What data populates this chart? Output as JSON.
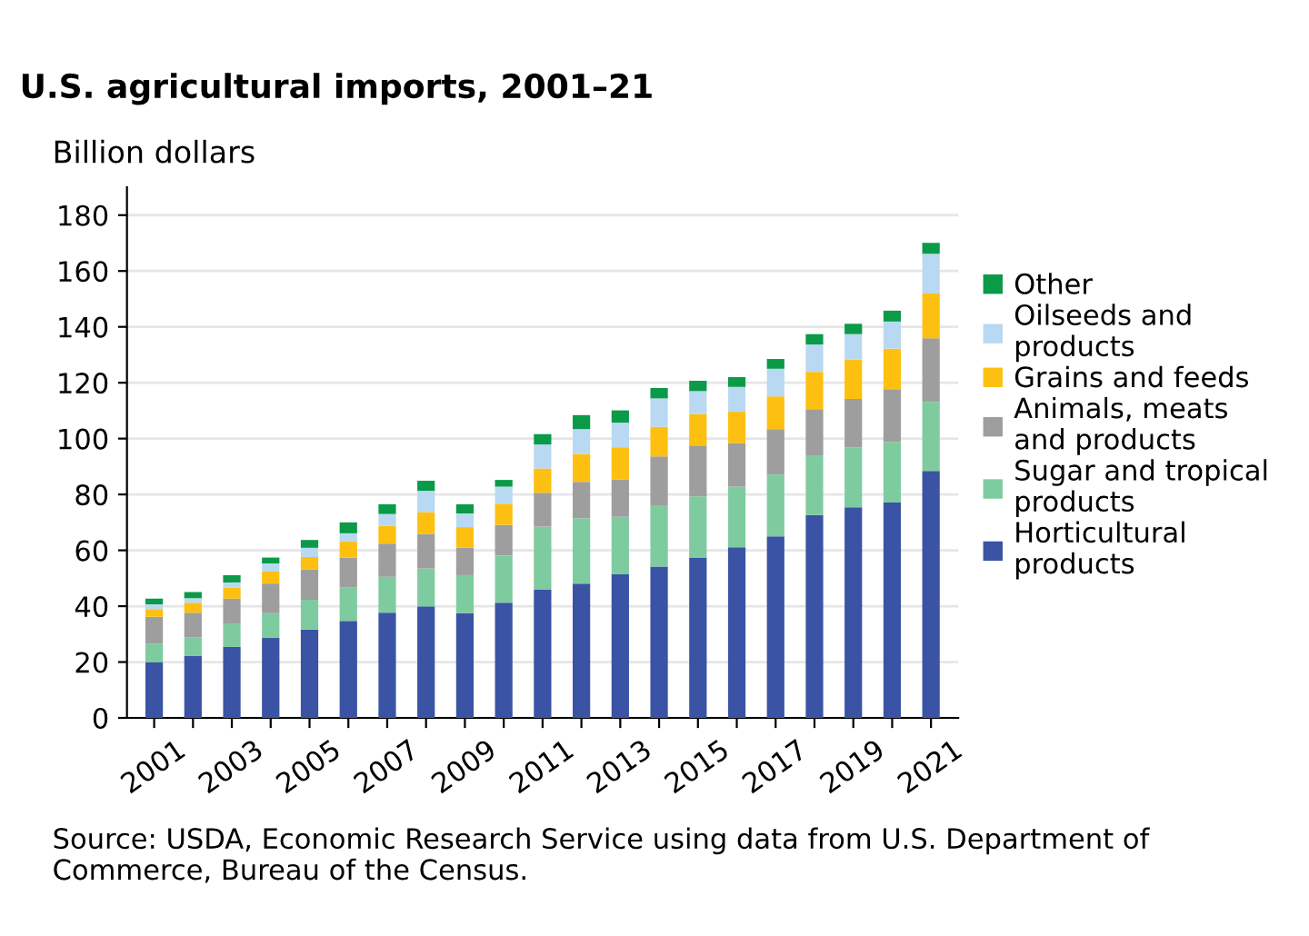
{
  "chart_data": {
    "type": "bar",
    "stacked": true,
    "title": "U.S. agricultural imports, 2001–21",
    "ylabel": "Billion dollars",
    "categories": [
      "2001",
      null,
      "2003",
      null,
      "2005",
      null,
      "2007",
      null,
      "2009",
      null,
      "2011",
      null,
      "2013",
      null,
      "2015",
      null,
      "2017",
      null,
      "2019",
      null,
      "2021"
    ],
    "series": [
      {
        "name": "Horticultural\nproducts",
        "color": "#3a53a4",
        "values": [
          20,
          22.1,
          25.4,
          28.6,
          31.6,
          34.7,
          37.7,
          39.9,
          37.5,
          41.2,
          45.9,
          48.1,
          51.4,
          54.2,
          57.4,
          61.1,
          65.0,
          72.6,
          75.4,
          77.1,
          88.4
        ]
      },
      {
        "name": "Sugar and tropical\nproducts",
        "color": "#7fcba0",
        "values": [
          6.6,
          6.7,
          8.4,
          8.9,
          10.7,
          12.1,
          12.8,
          13.6,
          13.6,
          16.9,
          22.6,
          23.4,
          20.6,
          21.9,
          21.9,
          21.7,
          22.1,
          21.2,
          21.5,
          21.7,
          24.7
        ]
      },
      {
        "name": "Animals, meats\nand products",
        "color": "#9e9e9e",
        "values": [
          9.6,
          8.9,
          8.9,
          10.6,
          10.8,
          10.6,
          11.9,
          12.4,
          9.8,
          11.0,
          12.1,
          13.0,
          13.4,
          17.5,
          18.2,
          15.6,
          16.3,
          16.7,
          17.3,
          18.9,
          22.8
        ]
      },
      {
        "name": "Grains and feeds",
        "color": "#fdc010",
        "values": [
          2.8,
          3.5,
          3.9,
          4.3,
          4.5,
          5.7,
          6.3,
          7.8,
          7.4,
          7.6,
          8.7,
          10.0,
          11.5,
          10.6,
          11.3,
          11.2,
          11.7,
          13.4,
          14.1,
          14.5,
          16.0
        ]
      },
      {
        "name": "Oilseeds and\nproducts",
        "color": "#b9d9f2",
        "values": [
          1.7,
          1.7,
          1.9,
          2.9,
          3.3,
          3.0,
          4.3,
          7.6,
          4.9,
          6.1,
          8.6,
          8.9,
          8.8,
          10.2,
          8.2,
          8.9,
          9.9,
          9.8,
          9.1,
          9.7,
          14.3
        ]
      },
      {
        "name": "Other",
        "color": "#0a9a48",
        "values": [
          2.0,
          2.2,
          2.6,
          2.1,
          2.8,
          3.9,
          3.5,
          3.6,
          3.3,
          2.4,
          3.7,
          5.0,
          4.4,
          3.7,
          3.7,
          3.5,
          3.5,
          3.7,
          3.7,
          3.9,
          3.9
        ]
      }
    ],
    "ylim": [
      0,
      190
    ],
    "yticks": [
      0,
      20,
      40,
      60,
      80,
      100,
      120,
      140,
      160,
      180
    ],
    "grid": "y",
    "legend": "right",
    "annotations": [
      "Source: USDA, Economic Research Service using data from U.S. Department of Commerce, Bureau of the Census."
    ]
  }
}
